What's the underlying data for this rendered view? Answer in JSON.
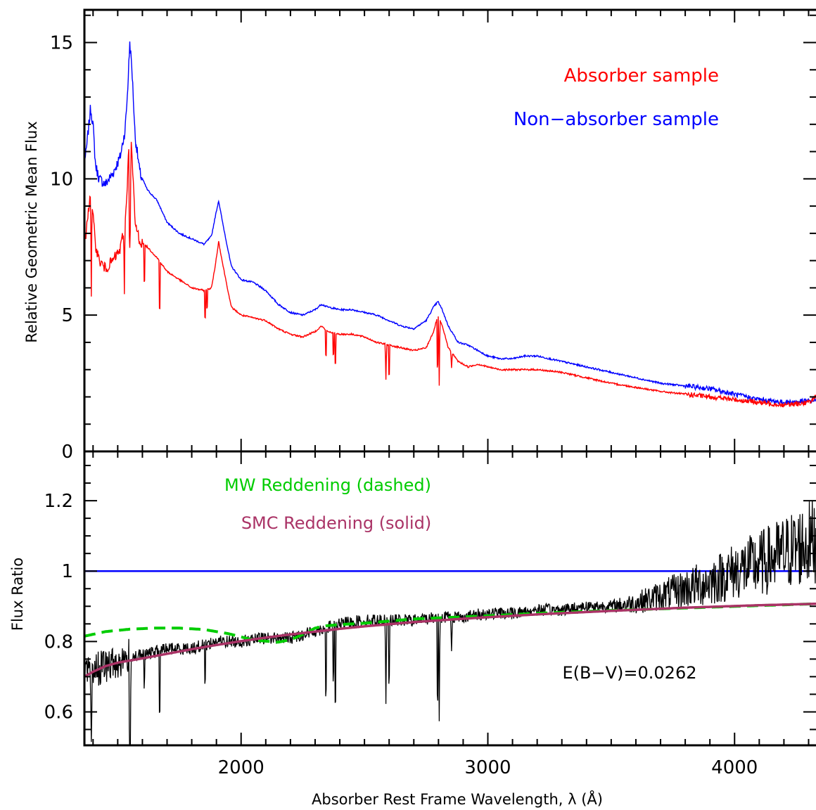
{
  "chart_data": [
    {
      "type": "line",
      "panel": "top",
      "ylabel": "Relative Geometric Mean Flux",
      "xlim": [
        1365,
        4330
      ],
      "ylim": [
        0,
        16.2
      ],
      "yticks": [
        0,
        5,
        10,
        15
      ],
      "ytick_labels": [
        "0",
        "5",
        "10",
        "15"
      ],
      "legend": [
        {
          "text": "Absorber sample",
          "color": "#ff0000"
        },
        {
          "text": "Non−absorber sample",
          "color": "#0000ff"
        }
      ],
      "series": [
        {
          "name": "Non−absorber sample",
          "color": "#0000ff",
          "x": [
            1370,
            1390,
            1400,
            1410,
            1425,
            1450,
            1480,
            1510,
            1530,
            1540,
            1549,
            1558,
            1570,
            1590,
            1620,
            1660,
            1700,
            1750,
            1800,
            1850,
            1880,
            1895,
            1909,
            1925,
            1960,
            2000,
            2050,
            2100,
            2150,
            2200,
            2250,
            2300,
            2326,
            2350,
            2400,
            2450,
            2500,
            2550,
            2600,
            2650,
            2700,
            2750,
            2780,
            2798,
            2815,
            2840,
            2880,
            2920,
            2960,
            3000,
            3050,
            3100,
            3150,
            3200,
            3300,
            3400,
            3500,
            3600,
            3700,
            3800,
            3900,
            4000,
            4100,
            4200,
            4300,
            4330
          ],
          "y": [
            10.8,
            12.6,
            12.0,
            10.5,
            10.0,
            9.8,
            10.2,
            10.8,
            11.8,
            13.2,
            15.0,
            14.0,
            11.6,
            10.2,
            9.6,
            9.2,
            8.4,
            8.0,
            7.8,
            7.6,
            7.9,
            8.6,
            9.2,
            8.4,
            6.8,
            6.3,
            6.2,
            5.9,
            5.4,
            5.1,
            5.0,
            5.2,
            5.4,
            5.3,
            5.2,
            5.2,
            5.1,
            5.0,
            4.8,
            4.6,
            4.5,
            4.8,
            5.3,
            5.5,
            5.2,
            4.6,
            4.0,
            3.9,
            3.7,
            3.5,
            3.4,
            3.4,
            3.5,
            3.5,
            3.3,
            3.1,
            2.9,
            2.7,
            2.5,
            2.4,
            2.3,
            2.1,
            1.9,
            1.8,
            1.85,
            1.9
          ]
        },
        {
          "name": "Absorber sample",
          "color": "#ff0000",
          "x": [
            1370,
            1390,
            1400,
            1410,
            1425,
            1450,
            1480,
            1510,
            1530,
            1540,
            1549,
            1558,
            1570,
            1590,
            1620,
            1660,
            1700,
            1750,
            1800,
            1850,
            1880,
            1895,
            1909,
            1925,
            1960,
            2000,
            2050,
            2100,
            2150,
            2200,
            2250,
            2300,
            2326,
            2350,
            2400,
            2450,
            2500,
            2550,
            2600,
            2650,
            2700,
            2750,
            2780,
            2798,
            2815,
            2840,
            2880,
            2920,
            2960,
            3000,
            3050,
            3100,
            3150,
            3200,
            3300,
            3400,
            3500,
            3600,
            3700,
            3800,
            3900,
            4000,
            4100,
            4200,
            4300,
            4330
          ],
          "y": [
            7.8,
            9.6,
            8.6,
            7.6,
            7.0,
            6.7,
            7.0,
            7.4,
            8.4,
            10.0,
            12.3,
            10.8,
            8.4,
            7.7,
            7.5,
            7.1,
            6.6,
            6.3,
            6.0,
            5.9,
            6.0,
            6.8,
            7.7,
            6.9,
            5.3,
            5.0,
            4.9,
            4.8,
            4.5,
            4.3,
            4.2,
            4.4,
            4.6,
            4.4,
            4.3,
            4.3,
            4.2,
            4.0,
            3.9,
            3.8,
            3.7,
            3.8,
            4.4,
            5.0,
            4.6,
            3.8,
            3.3,
            3.1,
            3.2,
            3.1,
            3.0,
            3.0,
            3.0,
            3.0,
            2.9,
            2.7,
            2.5,
            2.35,
            2.2,
            2.1,
            2.0,
            1.9,
            1.8,
            1.7,
            1.8,
            2.0
          ]
        }
      ],
      "absorption_lines": [
        {
          "x": 1393,
          "depth": 3.5
        },
        {
          "x": 1527,
          "depth": 2.5
        },
        {
          "x": 1548,
          "depth": 5.5
        },
        {
          "x": 1551,
          "depth": 4.0
        },
        {
          "x": 1608,
          "depth": 2.0
        },
        {
          "x": 1670,
          "depth": 2.6
        },
        {
          "x": 1854,
          "depth": 1.5
        },
        {
          "x": 1862,
          "depth": 1.0
        },
        {
          "x": 2344,
          "depth": 1.4
        },
        {
          "x": 2374,
          "depth": 1.2
        },
        {
          "x": 2382,
          "depth": 1.7
        },
        {
          "x": 2587,
          "depth": 1.3
        },
        {
          "x": 2600,
          "depth": 1.6
        },
        {
          "x": 2796,
          "depth": 2.7
        },
        {
          "x": 2803,
          "depth": 2.5
        },
        {
          "x": 2853,
          "depth": 0.6
        }
      ]
    },
    {
      "type": "line",
      "panel": "bottom",
      "xlabel": "Absorber Rest Frame Wavelength, λ (Å)",
      "ylabel": "Flux Ratio",
      "xlim": [
        1365,
        4330
      ],
      "ylim": [
        0.505,
        1.34
      ],
      "xticks": [
        2000,
        3000,
        4000
      ],
      "xtick_labels": [
        "2000",
        "3000",
        "4000"
      ],
      "yticks": [
        0.6,
        0.8,
        1.0,
        1.2
      ],
      "ytick_labels": [
        "0.6",
        "0.8",
        "1",
        "1.2"
      ],
      "annotations": [
        {
          "text": "MW Reddening (dashed)",
          "color": "#00cc00"
        },
        {
          "text": "SMC Reddening (solid)",
          "color": "#aa3366"
        },
        {
          "text": "E(B−V)=0.0262",
          "color": "#000000"
        }
      ],
      "series": [
        {
          "name": "Flux ratio",
          "color": "#000000",
          "x": [
            1370,
            1400,
            1450,
            1500,
            1550,
            1600,
            1700,
            1800,
            1900,
            2000,
            2100,
            2200,
            2300,
            2400,
            2500,
            2600,
            2700,
            2800,
            2900,
            3000,
            3100,
            3200,
            3300,
            3400,
            3500,
            3600,
            3700,
            3800,
            3900,
            4000,
            4100,
            4200,
            4300,
            4330
          ],
          "y": [
            0.7,
            0.72,
            0.73,
            0.74,
            0.76,
            0.76,
            0.78,
            0.78,
            0.8,
            0.8,
            0.81,
            0.81,
            0.83,
            0.85,
            0.86,
            0.86,
            0.86,
            0.87,
            0.87,
            0.88,
            0.88,
            0.89,
            0.89,
            0.9,
            0.9,
            0.91,
            0.93,
            0.95,
            0.97,
            1.0,
            1.02,
            1.05,
            1.08,
            1.09
          ]
        },
        {
          "name": "Unity",
          "color": "#0000ff",
          "x": [
            1365,
            4330
          ],
          "y": [
            1.0,
            1.0
          ]
        },
        {
          "name": "MW Reddening (dashed)",
          "color": "#00cc00",
          "dashed": true,
          "x": [
            1365,
            1450,
            1550,
            1650,
            1750,
            1850,
            1950,
            2050,
            2150,
            2200,
            2250,
            2300,
            2350,
            2400,
            2500,
            2600,
            2700,
            2800,
            3000,
            3200,
            3500,
            3800,
            4100,
            4330
          ],
          "y": [
            0.815,
            0.828,
            0.835,
            0.838,
            0.838,
            0.834,
            0.822,
            0.804,
            0.798,
            0.805,
            0.82,
            0.838,
            0.845,
            0.848,
            0.852,
            0.858,
            0.864,
            0.867,
            0.873,
            0.88,
            0.888,
            0.895,
            0.902,
            0.907
          ]
        },
        {
          "name": "SMC Reddening (solid)",
          "color": "#aa3366",
          "x": [
            1365,
            1400,
            1450,
            1500,
            1600,
            1700,
            1800,
            1900,
            2000,
            2100,
            2200,
            2300,
            2400,
            2500,
            2600,
            2700,
            2800,
            3000,
            3200,
            3500,
            3800,
            4100,
            4330
          ],
          "y": [
            0.7,
            0.714,
            0.73,
            0.74,
            0.752,
            0.765,
            0.778,
            0.79,
            0.801,
            0.811,
            0.82,
            0.828,
            0.836,
            0.843,
            0.849,
            0.855,
            0.86,
            0.869,
            0.877,
            0.887,
            0.896,
            0.903,
            0.907
          ]
        }
      ],
      "absorption_lines": [
        {
          "x": 1393,
          "depth": 0.25
        },
        {
          "x": 1548,
          "depth": 0.35
        },
        {
          "x": 1551,
          "depth": 0.3
        },
        {
          "x": 1608,
          "depth": 0.12
        },
        {
          "x": 1670,
          "depth": 0.27
        },
        {
          "x": 1854,
          "depth": 0.15
        },
        {
          "x": 2344,
          "depth": 0.28
        },
        {
          "x": 2374,
          "depth": 0.22
        },
        {
          "x": 2382,
          "depth": 0.32
        },
        {
          "x": 2587,
          "depth": 0.22
        },
        {
          "x": 2600,
          "depth": 0.26
        },
        {
          "x": 2796,
          "depth": 0.34
        },
        {
          "x": 2803,
          "depth": 0.3
        },
        {
          "x": 2853,
          "depth": 0.1
        }
      ]
    }
  ]
}
